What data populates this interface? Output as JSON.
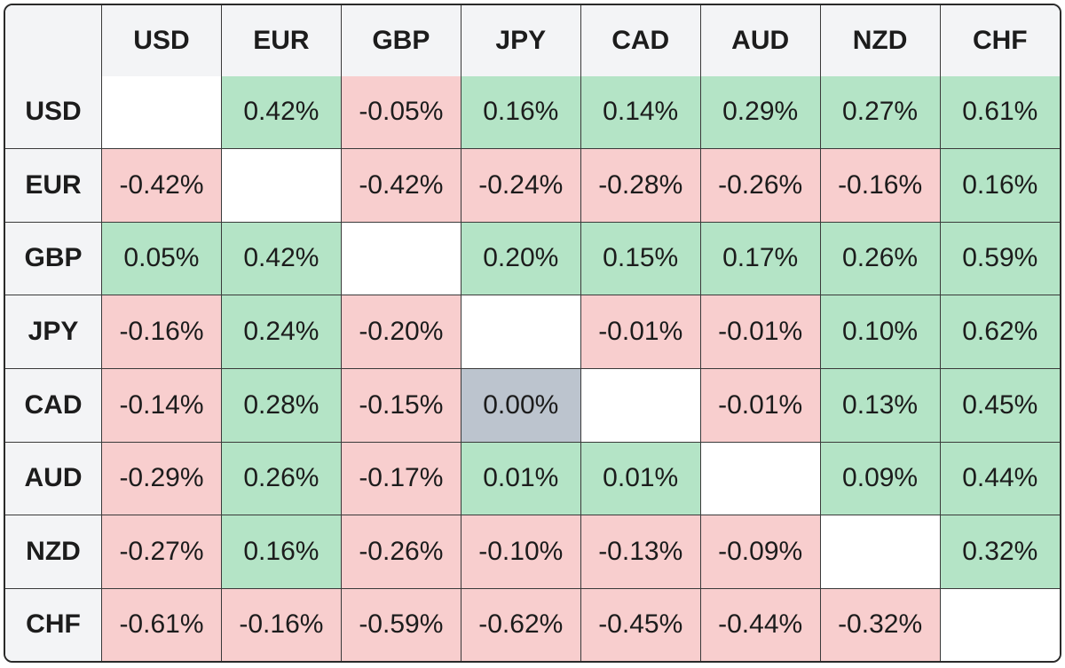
{
  "colors": {
    "positive": "#b4e4c6",
    "negative": "#f8cece",
    "neutral": "#bcc4ce",
    "empty": "#ffffff",
    "header_bg": "#f3f4f6",
    "border": "#3a3a3a"
  },
  "chart_data": {
    "type": "heatmap",
    "title": "",
    "columns": [
      "USD",
      "EUR",
      "GBP",
      "JPY",
      "CAD",
      "AUD",
      "NZD",
      "CHF"
    ],
    "rows": [
      "USD",
      "EUR",
      "GBP",
      "JPY",
      "CAD",
      "AUD",
      "NZD",
      "CHF"
    ],
    "values": [
      [
        "",
        "0.42%",
        "-0.05%",
        "0.16%",
        "0.14%",
        "0.29%",
        "0.27%",
        "0.61%"
      ],
      [
        "-0.42%",
        "",
        "-0.42%",
        "-0.24%",
        "-0.28%",
        "-0.26%",
        "-0.16%",
        "0.16%"
      ],
      [
        "0.05%",
        "0.42%",
        "",
        "0.20%",
        "0.15%",
        "0.17%",
        "0.26%",
        "0.59%"
      ],
      [
        "-0.16%",
        "0.24%",
        "-0.20%",
        "",
        "-0.01%",
        "-0.01%",
        "0.10%",
        "0.62%"
      ],
      [
        "-0.14%",
        "0.28%",
        "-0.15%",
        "0.00%",
        "",
        "-0.01%",
        "0.13%",
        "0.45%"
      ],
      [
        "-0.29%",
        "0.26%",
        "-0.17%",
        "0.01%",
        "0.01%",
        "",
        "0.09%",
        "0.44%"
      ],
      [
        "-0.27%",
        "0.16%",
        "-0.26%",
        "-0.10%",
        "-0.13%",
        "-0.09%",
        "",
        "0.32%"
      ],
      [
        "-0.61%",
        "-0.16%",
        "-0.59%",
        "-0.62%",
        "-0.45%",
        "-0.44%",
        "-0.32%",
        ""
      ]
    ],
    "numeric_values": [
      [
        null,
        0.42,
        -0.05,
        0.16,
        0.14,
        0.29,
        0.27,
        0.61
      ],
      [
        -0.42,
        null,
        -0.42,
        -0.24,
        -0.28,
        -0.26,
        -0.16,
        0.16
      ],
      [
        0.05,
        0.42,
        null,
        0.2,
        0.15,
        0.17,
        0.26,
        0.59
      ],
      [
        -0.16,
        0.24,
        -0.2,
        null,
        -0.01,
        -0.01,
        0.1,
        0.62
      ],
      [
        -0.14,
        0.28,
        -0.15,
        0.0,
        null,
        -0.01,
        0.13,
        0.45
      ],
      [
        -0.29,
        0.26,
        -0.17,
        0.01,
        0.01,
        null,
        0.09,
        0.44
      ],
      [
        -0.27,
        0.16,
        -0.26,
        -0.1,
        -0.13,
        -0.09,
        null,
        0.32
      ],
      [
        -0.61,
        -0.16,
        -0.59,
        -0.62,
        -0.45,
        -0.44,
        -0.32,
        null
      ]
    ],
    "unit": "%"
  }
}
